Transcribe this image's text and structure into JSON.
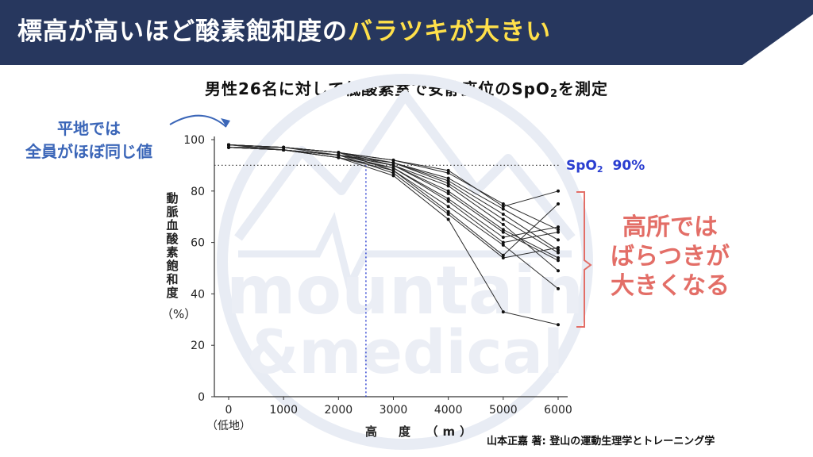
{
  "header": {
    "title_part1": "標高が高いほど酸素飽和度の",
    "title_highlight": "バラツキが大きい",
    "bg_color": "#27375e",
    "highlight_color": "#ffe04a"
  },
  "subtitle": {
    "prefix": "男性26名に対して低酸素室で安静座位のSpO",
    "sub": "2",
    "suffix": "を測定"
  },
  "annotations": {
    "flat": [
      "平地では",
      "全員がほぼ同じ値"
    ],
    "high": [
      "高所では",
      "ばらつきが",
      "大きくなる"
    ],
    "spo2_line": {
      "prefix": "SpO",
      "sub": "2",
      "value": "90%"
    }
  },
  "source": "山本正嘉 著: 登山の運動生理学とトレーニング学",
  "watermark": {
    "line1": "mountain",
    "line2": "&medical"
  },
  "chart_data": {
    "type": "line",
    "x_values": [
      0,
      1000,
      2000,
      3000,
      4000,
      5000,
      6000
    ],
    "x_tick_labels": [
      "0",
      "1000",
      "2000",
      "3000",
      "4000",
      "5000",
      "6000"
    ],
    "x_sub_label": "（低地）",
    "xlabel": "高　度　（m）",
    "ylabel": "動脈血酸素飽和度",
    "ylabel_unit": "（%）",
    "y_ticks": [
      0,
      20,
      40,
      60,
      80,
      100
    ],
    "xlim": [
      0,
      6000
    ],
    "ylim": [
      0,
      100
    ],
    "reference_lines": {
      "spo2_threshold": 90,
      "altitude": 2500
    },
    "series": [
      {
        "values": [
          98,
          97,
          95,
          92,
          88,
          74,
          80
        ]
      },
      {
        "values": [
          98,
          97,
          95,
          92,
          87,
          75,
          65
        ]
      },
      {
        "values": [
          98,
          97,
          95,
          91,
          85,
          73,
          61
        ]
      },
      {
        "values": [
          97,
          97,
          94,
          91,
          84,
          71,
          57
        ]
      },
      {
        "values": [
          97,
          96,
          94,
          91,
          83,
          69,
          56
        ]
      },
      {
        "values": [
          98,
          97,
          95,
          90,
          82,
          67,
          49
        ]
      },
      {
        "values": [
          97,
          96,
          94,
          90,
          80,
          65,
          54
        ]
      },
      {
        "values": [
          97,
          96,
          94,
          90,
          79,
          64,
          53
        ]
      },
      {
        "values": [
          98,
          96,
          94,
          89,
          77,
          62,
          66
        ]
      },
      {
        "values": [
          97,
          96,
          93,
          89,
          76,
          60,
          64
        ]
      },
      {
        "values": [
          97,
          96,
          93,
          88,
          74,
          59,
          42
        ]
      },
      {
        "values": [
          98,
          97,
          95,
          88,
          72,
          55,
          75
        ]
      },
      {
        "values": [
          97,
          96,
          94,
          87,
          71,
          54,
          58
        ]
      },
      {
        "values": [
          98,
          96,
          93,
          86,
          69,
          33,
          28
        ]
      }
    ]
  }
}
